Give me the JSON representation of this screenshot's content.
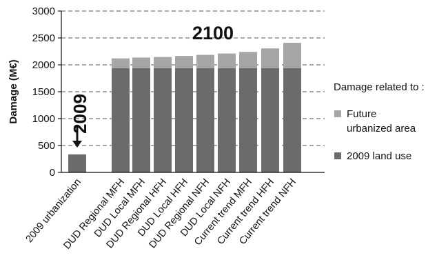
{
  "chart_data": {
    "type": "bar",
    "stacked": true,
    "ylabel": "Damage (M€)",
    "ylim": [
      0,
      3000
    ],
    "yticks": [
      0,
      500,
      1000,
      1500,
      2000,
      2500,
      3000
    ],
    "grid": "dashed horizontal",
    "categories": [
      "2009 urbanization",
      "DUD Regional MFH",
      "DUD Local MFH",
      "DUD Regional HFH",
      "DUD Local HFH",
      "DUD Regional NFH",
      "DUD Local NFH",
      "Current trend MFH",
      "Current trend HFH",
      "Current trend NFH"
    ],
    "series": [
      {
        "name": "2009 land use",
        "color": "#6b6b6b",
        "values": [
          335,
          1940,
          1940,
          1940,
          1940,
          1940,
          1940,
          1940,
          1940,
          1940
        ]
      },
      {
        "name": "Future urbanized area",
        "color": "#a6a6a6",
        "values": [
          0,
          180,
          195,
          205,
          225,
          245,
          270,
          300,
          365,
          470
        ]
      }
    ],
    "legend_title": "Damage related to :",
    "legend_items": [
      {
        "label_lines": [
          "Future",
          "urbanized area"
        ],
        "color": "#a6a6a6"
      },
      {
        "label_lines": [
          "2009 land use"
        ],
        "color": "#6b6b6b"
      }
    ],
    "annotations": {
      "year_2009": "2009",
      "year_2100": "2100"
    }
  }
}
